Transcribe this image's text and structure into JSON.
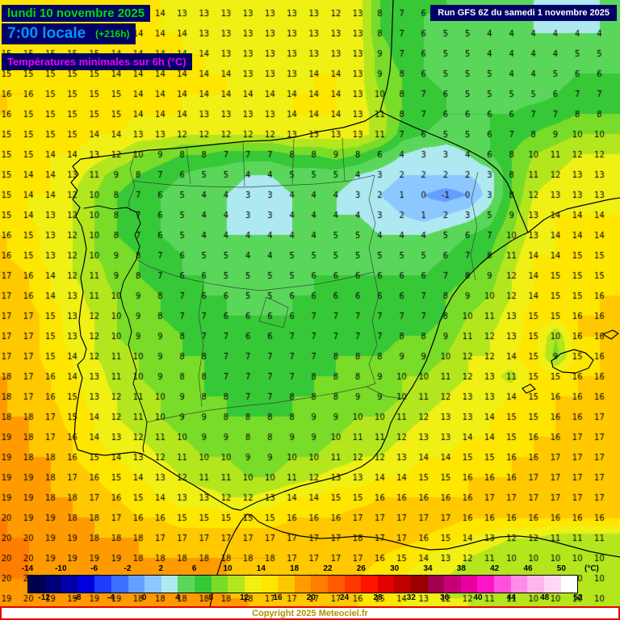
{
  "header": {
    "date": "lundi 10 novembre 2025",
    "time": "7:00 locale",
    "offset": "(+216h)",
    "subtitle": "Températures minimales sur 6h (°C)",
    "run": "Run GFS 6Z du samedi 1 novembre 2025"
  },
  "footer": {
    "copyright": "Copyright 2025 Meteociel.fr"
  },
  "colorbar": {
    "unit": "(°C)",
    "min": -14,
    "max": 52,
    "step": 2,
    "top_labels": [
      -14,
      -10,
      -6,
      -2,
      2,
      6,
      10,
      14,
      18,
      22,
      26,
      30,
      34,
      38,
      42,
      46,
      50
    ],
    "bottom_labels": [
      -12,
      -8,
      -4,
      0,
      4,
      8,
      12,
      16,
      20,
      24,
      28,
      32,
      36,
      40,
      44,
      48,
      52
    ],
    "colors": [
      "#000050",
      "#000078",
      "#0000aa",
      "#0000dc",
      "#1e3cff",
      "#3c6eff",
      "#649fff",
      "#8cc8ff",
      "#aee8f0",
      "#5ad75a",
      "#37c837",
      "#78dc28",
      "#b4e61e",
      "#f0f014",
      "#ffe600",
      "#ffc800",
      "#ff9b00",
      "#ff7d00",
      "#ff5a00",
      "#ff3700",
      "#ff1400",
      "#e10000",
      "#be0000",
      "#9b0000",
      "#a00050",
      "#c80078",
      "#e600a0",
      "#ff14c8",
      "#ff50dc",
      "#ff8ce6",
      "#ffb4ee",
      "#ffd7f5",
      "#ffffff"
    ]
  },
  "map": {
    "grid": {
      "values": [
        [
          15,
          15,
          15,
          15,
          14,
          14,
          14,
          14,
          13,
          13,
          13,
          13,
          13,
          13,
          13,
          12,
          13,
          8,
          7,
          6,
          6,
          5,
          4,
          4,
          4,
          3,
          3,
          4
        ],
        [
          15,
          15,
          15,
          15,
          14,
          14,
          14,
          14,
          14,
          13,
          13,
          13,
          13,
          13,
          13,
          13,
          13,
          8,
          7,
          6,
          5,
          5,
          4,
          4,
          4,
          4,
          4,
          4
        ],
        [
          15,
          15,
          15,
          15,
          15,
          14,
          14,
          14,
          14,
          14,
          13,
          13,
          13,
          13,
          13,
          13,
          13,
          9,
          7,
          6,
          5,
          5,
          4,
          4,
          4,
          4,
          5,
          5
        ],
        [
          15,
          15,
          15,
          15,
          15,
          14,
          14,
          14,
          14,
          14,
          14,
          13,
          13,
          13,
          14,
          14,
          13,
          9,
          8,
          6,
          5,
          5,
          5,
          4,
          4,
          5,
          6,
          6
        ],
        [
          16,
          16,
          15,
          15,
          15,
          15,
          14,
          14,
          14,
          14,
          14,
          14,
          14,
          14,
          14,
          14,
          13,
          10,
          8,
          7,
          6,
          5,
          5,
          5,
          5,
          6,
          7,
          7
        ],
        [
          16,
          15,
          15,
          15,
          15,
          15,
          14,
          14,
          14,
          13,
          13,
          13,
          13,
          14,
          14,
          14,
          13,
          11,
          8,
          7,
          6,
          6,
          6,
          6,
          7,
          7,
          8,
          8
        ],
        [
          15,
          15,
          15,
          15,
          14,
          14,
          13,
          13,
          12,
          12,
          12,
          12,
          12,
          13,
          13,
          13,
          13,
          11,
          7,
          6,
          5,
          5,
          6,
          7,
          8,
          9,
          10,
          10
        ],
        [
          15,
          15,
          14,
          14,
          13,
          12,
          10,
          9,
          8,
          8,
          7,
          7,
          7,
          8,
          8,
          9,
          8,
          6,
          4,
          3,
          3,
          4,
          6,
          8,
          10,
          11,
          12,
          12
        ],
        [
          15,
          14,
          14,
          13,
          11,
          9,
          8,
          7,
          6,
          5,
          5,
          4,
          4,
          5,
          5,
          5,
          4,
          3,
          2,
          2,
          2,
          2,
          3,
          8,
          11,
          12,
          13,
          13
        ],
        [
          15,
          14,
          14,
          12,
          10,
          8,
          7,
          6,
          5,
          4,
          4,
          3,
          3,
          4,
          4,
          4,
          3,
          2,
          1,
          0,
          -1,
          0,
          3,
          8,
          12,
          13,
          13,
          13
        ],
        [
          15,
          14,
          13,
          12,
          10,
          8,
          7,
          6,
          5,
          4,
          4,
          3,
          3,
          4,
          4,
          4,
          4,
          3,
          2,
          1,
          2,
          3,
          5,
          9,
          13,
          14,
          14,
          14
        ],
        [
          16,
          15,
          13,
          12,
          10,
          8,
          7,
          6,
          5,
          4,
          4,
          4,
          4,
          4,
          4,
          5,
          5,
          4,
          4,
          4,
          5,
          6,
          7,
          10,
          13,
          14,
          14,
          14
        ],
        [
          16,
          15,
          13,
          12,
          10,
          9,
          8,
          7,
          6,
          5,
          5,
          4,
          4,
          5,
          5,
          5,
          5,
          5,
          5,
          5,
          6,
          7,
          8,
          11,
          14,
          14,
          15,
          15
        ],
        [
          17,
          16,
          14,
          12,
          11,
          9,
          8,
          7,
          6,
          6,
          5,
          5,
          5,
          5,
          6,
          6,
          6,
          6,
          6,
          6,
          7,
          8,
          9,
          12,
          14,
          15,
          15,
          15
        ],
        [
          17,
          16,
          14,
          13,
          11,
          10,
          9,
          8,
          7,
          6,
          6,
          5,
          5,
          6,
          6,
          6,
          6,
          6,
          6,
          7,
          8,
          9,
          10,
          12,
          14,
          15,
          15,
          16
        ],
        [
          17,
          17,
          15,
          13,
          12,
          10,
          9,
          8,
          7,
          7,
          6,
          6,
          6,
          6,
          7,
          7,
          7,
          7,
          7,
          7,
          8,
          10,
          11,
          13,
          15,
          15,
          16,
          16
        ],
        [
          17,
          17,
          15,
          13,
          12,
          10,
          9,
          9,
          8,
          7,
          7,
          6,
          6,
          7,
          7,
          7,
          7,
          7,
          8,
          8,
          9,
          11,
          12,
          13,
          15,
          10,
          16,
          16
        ],
        [
          17,
          17,
          15,
          14,
          12,
          11,
          10,
          9,
          8,
          8,
          7,
          7,
          7,
          7,
          7,
          8,
          8,
          8,
          9,
          9,
          10,
          12,
          12,
          14,
          15,
          9,
          15,
          16
        ],
        [
          18,
          17,
          16,
          14,
          13,
          11,
          10,
          9,
          8,
          8,
          7,
          7,
          7,
          7,
          8,
          8,
          8,
          9,
          10,
          10,
          11,
          12,
          13,
          11,
          15,
          15,
          16,
          16
        ],
        [
          18,
          17,
          16,
          15,
          13,
          12,
          11,
          10,
          9,
          8,
          8,
          7,
          7,
          8,
          8,
          8,
          9,
          9,
          10,
          11,
          12,
          13,
          13,
          14,
          15,
          16,
          16,
          16
        ],
        [
          18,
          18,
          17,
          15,
          14,
          12,
          11,
          10,
          9,
          9,
          8,
          8,
          8,
          8,
          9,
          9,
          10,
          10,
          11,
          12,
          13,
          13,
          14,
          15,
          15,
          16,
          16,
          17
        ],
        [
          19,
          18,
          17,
          16,
          14,
          13,
          12,
          11,
          10,
          9,
          9,
          8,
          8,
          9,
          9,
          10,
          11,
          11,
          12,
          13,
          13,
          14,
          14,
          15,
          16,
          16,
          17,
          17
        ],
        [
          19,
          18,
          18,
          16,
          15,
          14,
          13,
          12,
          11,
          10,
          10,
          9,
          9,
          10,
          10,
          11,
          12,
          12,
          13,
          14,
          14,
          15,
          15,
          16,
          16,
          17,
          17,
          17
        ],
        [
          19,
          19,
          18,
          17,
          16,
          15,
          14,
          13,
          12,
          11,
          11,
          10,
          10,
          11,
          12,
          13,
          13,
          14,
          14,
          15,
          15,
          16,
          16,
          16,
          17,
          17,
          17,
          17
        ],
        [
          19,
          19,
          18,
          18,
          17,
          16,
          15,
          14,
          13,
          13,
          12,
          12,
          13,
          14,
          14,
          15,
          15,
          16,
          16,
          16,
          16,
          16,
          17,
          17,
          17,
          17,
          17,
          17
        ],
        [
          20,
          19,
          19,
          18,
          18,
          17,
          16,
          16,
          15,
          15,
          15,
          15,
          15,
          16,
          16,
          16,
          17,
          17,
          17,
          17,
          17,
          16,
          16,
          16,
          16,
          16,
          16,
          16
        ],
        [
          20,
          20,
          19,
          19,
          18,
          18,
          18,
          17,
          17,
          17,
          17,
          17,
          17,
          17,
          17,
          17,
          18,
          17,
          17,
          16,
          15,
          14,
          13,
          12,
          12,
          11,
          11,
          11
        ],
        [
          20,
          20,
          19,
          19,
          19,
          19,
          18,
          18,
          18,
          18,
          18,
          18,
          18,
          17,
          17,
          17,
          17,
          16,
          15,
          14,
          13,
          12,
          11,
          10,
          10,
          10,
          10,
          10
        ],
        [
          20,
          20,
          19,
          19,
          19,
          18,
          18,
          18,
          18,
          18,
          18,
          17,
          17,
          17,
          17,
          16,
          16,
          15,
          14,
          13,
          12,
          11,
          11,
          10,
          10,
          10,
          10,
          10
        ],
        [
          19,
          20,
          19,
          19,
          19,
          19,
          18,
          18,
          18,
          18,
          18,
          18,
          17,
          17,
          17,
          17,
          16,
          15,
          14,
          13,
          12,
          12,
          11,
          11,
          10,
          10,
          10,
          10
        ]
      ]
    }
  }
}
